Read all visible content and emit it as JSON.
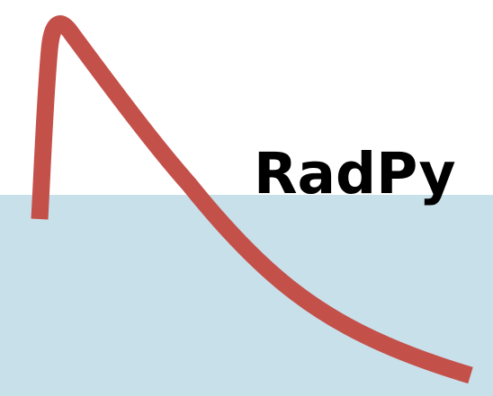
{
  "logo": {
    "wordmark": "RadPy",
    "colors": {
      "sky": "#ffffff",
      "water": "#c8e0ea",
      "curve": "#c4504a",
      "text": "#000000"
    }
  }
}
